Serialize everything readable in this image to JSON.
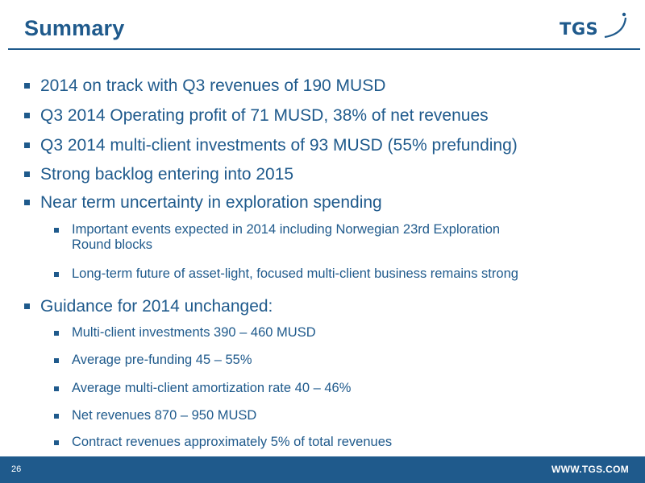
{
  "header": {
    "title": "Summary",
    "logo_text": "TGS"
  },
  "bullets": [
    {
      "text": "2014 on track with Q3 revenues of 190 MUSD"
    },
    {
      "text": "Q3 2014 Operating profit of 71 MUSD, 38% of net revenues"
    },
    {
      "text": "Q3 2014 multi-client investments of 93 MUSD (55% prefunding)"
    },
    {
      "text": "Strong backlog entering into 2015"
    },
    {
      "text": "Near term uncertainty in exploration spending",
      "sub": [
        {
          "line1": "Important events expected in 2014 including Norwegian 23rd Exploration",
          "line2": "Round blocks"
        },
        {
          "text": "Long-term future of asset-light, focused multi-client business remains strong"
        }
      ]
    },
    {
      "text": "Guidance for 2014 unchanged:",
      "sub": [
        {
          "text": "Multi-client investments  390 – 460 MUSD"
        },
        {
          "text": "Average pre-funding 45 – 55%"
        },
        {
          "text": "Average multi-client amortization rate 40 – 46%"
        },
        {
          "text": "Net revenues  870 – 950 MUSD"
        },
        {
          "text": "Contract revenues approximately 5% of total revenues"
        }
      ]
    }
  ],
  "footer": {
    "page_number": "26",
    "url": "WWW.TGS.COM"
  },
  "colors": {
    "brand_blue": "#1f5a8c",
    "background": "#ffffff"
  }
}
